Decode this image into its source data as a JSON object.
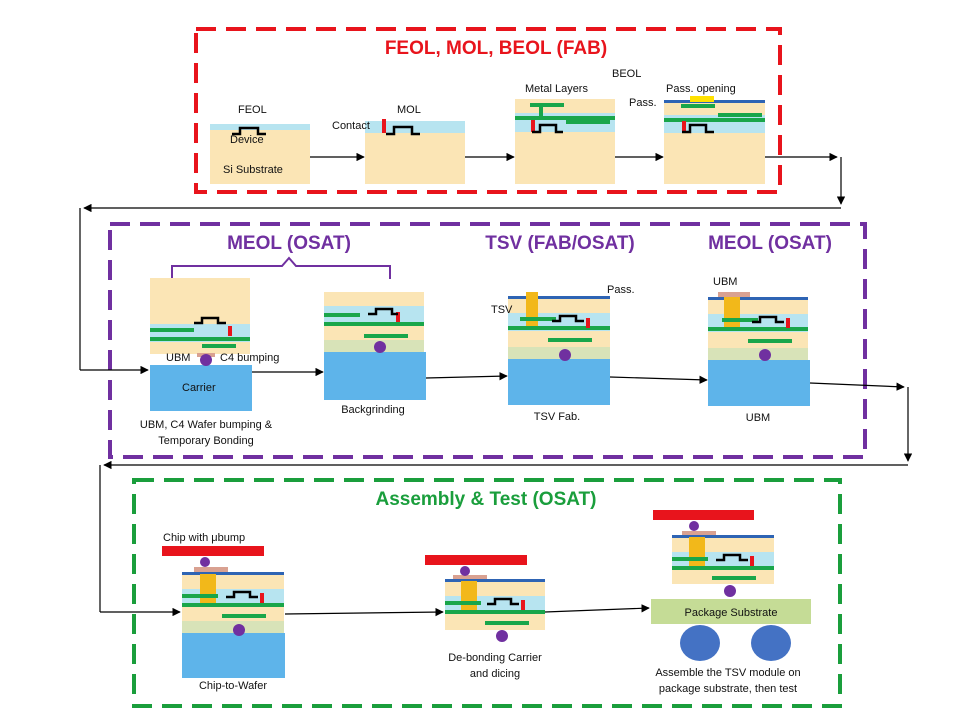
{
  "sections": {
    "fab": {
      "title": "FEOL, MOL, BEOL (FAB)",
      "color": "#e8141c"
    },
    "meol1": {
      "title": "MEOL (OSAT)",
      "color": "#7030a0"
    },
    "tsv": {
      "title": "TSV (FAB/OSAT)",
      "color": "#7030a0"
    },
    "meol2": {
      "title": "MEOL (OSAT)",
      "color": "#7030a0"
    },
    "assembly": {
      "title": "Assembly & Test (OSAT)",
      "color": "#1a9e3c"
    }
  },
  "labels": {
    "feol": "FEOL",
    "device": "Device",
    "si_substrate": "Si Substrate",
    "mol": "MOL",
    "contact": "Contact",
    "metal_layers": "Metal Layers",
    "beol": "BEOL",
    "pass_opening": "Pass. opening",
    "pass_fab": "Pass.",
    "ubm_c4": "UBM",
    "c4_bumping": "C4 bumping",
    "carrier": "Carrier",
    "step1_line1": "UBM, C4 Wafer bumping &",
    "step1_line2": "Temporary Bonding",
    "backgrinding": "Backgrinding",
    "tsv": "TSV",
    "pass_tsv": "Pass.",
    "tsv_fab": "TSV Fab.",
    "ubm_top": "UBM",
    "ubm_bottom": "UBM",
    "chip_with_ubump": "Chip with μbump",
    "chip_to_wafer": "Chip-to-Wafer",
    "debond_line1": "De-bonding Carrier",
    "debond_line2": "and dicing",
    "package_substrate": "Package Substrate",
    "assemble_line1": "Assemble the TSV module on",
    "assemble_line2": "package substrate, then test"
  },
  "colors": {
    "substrate": "#fbe5b5",
    "wafer_light": "#fbe5b5",
    "dielectric": "#b7e4f0",
    "metal": "#19a64a",
    "contact": "#e8141c",
    "carrier": "#5eb4ea",
    "bump": "#7030a0",
    "tsv": "#f2b81a",
    "passivation": "#2e64b4",
    "ubm": "#d9a191",
    "chip": "#e8141c",
    "package": "#c5dc96",
    "ball": "#4472c4",
    "thinned": "#d8e3b8"
  }
}
